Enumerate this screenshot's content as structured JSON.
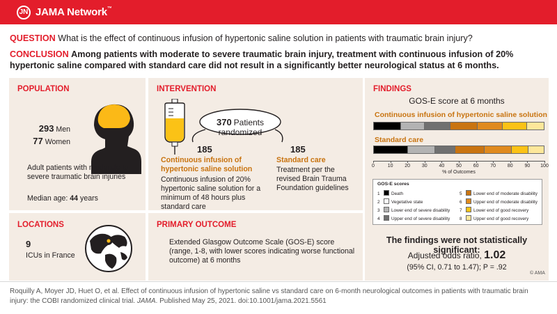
{
  "header": {
    "brand": "JAMA Network",
    "brand_mark": "JN",
    "trademark": "™"
  },
  "question": {
    "label": "QUESTION",
    "text": "What is the effect of continuous infusion of hypertonic saline solution in patients with traumatic brain injury?"
  },
  "conclusion": {
    "label": "CONCLUSION",
    "text": "Among patients with moderate to severe traumatic brain injury, treatment with continuous infusion of 20% hypertonic saline compared with standard care did not result in a significantly better neurological status at 6 months."
  },
  "population": {
    "label": "POPULATION",
    "men_count": "293",
    "men_label": "Men",
    "women_count": "77",
    "women_label": "Women",
    "description": "Adult patients with moderate to severe traumatic brain injuries",
    "median_age_label": "Median age:",
    "median_age_value": "44",
    "median_age_unit": "years"
  },
  "locations": {
    "label": "LOCATIONS",
    "count": "9",
    "text": "ICUs in France"
  },
  "intervention": {
    "label": "INTERVENTION",
    "randomized_count": "370",
    "randomized_label": "Patients randomized",
    "arm1": {
      "n": "185",
      "title": "Continuous infusion of hypertonic saline solution",
      "description": "Continuous infusion of 20% hypertonic saline solution for a minimum of 48 hours plus standard care"
    },
    "arm2": {
      "n": "185",
      "title": "Standard care",
      "description": "Treatment per the revised Brain Trauma Foundation guidelines"
    }
  },
  "primary_outcome": {
    "label": "PRIMARY OUTCOME",
    "text": "Extended Glasgow Outcome Scale (GOS-E) score (range, 1-8, with lower scores indicating worse functional outcome) at 6 months"
  },
  "findings": {
    "label": "FINDINGS",
    "chart_title": "GOS-E score at 6 months",
    "legend_title": "GOS-E scores",
    "result_heading": "The findings were not statistically significant:",
    "or_label": "Adjusted odds ratio,",
    "or_value": "1.02",
    "ci_text": "(95% CI, 0.71 to 1.47); P = .92",
    "copyright": "© AMA"
  },
  "chart_data": {
    "type": "bar",
    "stacked": true,
    "orientation": "horizontal",
    "title": "GOS-E score at 6 months",
    "xlabel": "% of Outcomes",
    "xlim": [
      0,
      100
    ],
    "xticks": [
      "0",
      "10",
      "20",
      "30",
      "40",
      "50",
      "60",
      "70",
      "80",
      "90",
      "100"
    ],
    "categories": [
      "Continuous infusion of hypertonic saline solution",
      "Standard care"
    ],
    "series": [
      {
        "name": "Death",
        "color": "#000000",
        "values": [
          16,
          20
        ]
      },
      {
        "name": "Vegetative state",
        "color": "#ffffff",
        "values": [
          0,
          0
        ]
      },
      {
        "name": "Lower end of severe disability",
        "color": "#b3b3b3",
        "values": [
          14,
          16
        ]
      },
      {
        "name": "Upper end of severe disability",
        "color": "#707070",
        "values": [
          15,
          12
        ]
      },
      {
        "name": "Lower end of moderate disability",
        "color": "#c97411",
        "values": [
          16,
          17
        ]
      },
      {
        "name": "Upper end of moderate disability",
        "color": "#e08a1e",
        "values": [
          15,
          16
        ]
      },
      {
        "name": "Lower end of good recovery",
        "color": "#fbc216",
        "values": [
          14,
          10
        ]
      },
      {
        "name": "Upper end of good recovery",
        "color": "#fde79a",
        "values": [
          10,
          9
        ]
      }
    ]
  },
  "citation": {
    "authors": "Roquilly A, Moyer JD, Huet O, et al.",
    "title": "Effect of continuous infusion of hypertonic saline vs standard care on 6-month neurological outcomes in patients with traumatic brain injury: the COBI randomized clinical trial.",
    "journal": "JAMA",
    "details": "Published May 25, 2021. doi:10.1001/jama.2021.5561"
  }
}
